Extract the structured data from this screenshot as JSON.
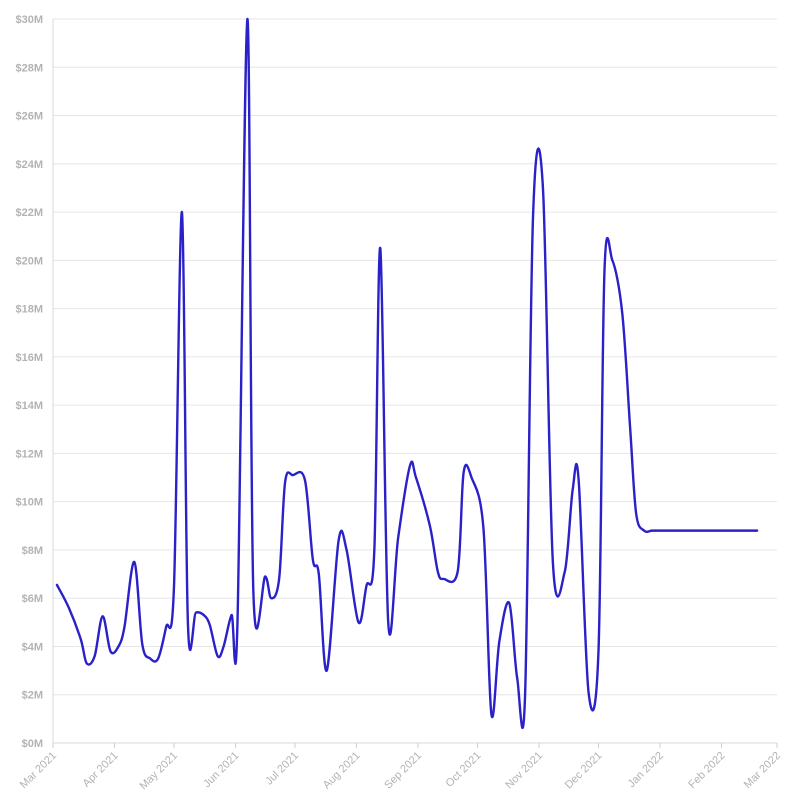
{
  "chart_data": {
    "type": "line",
    "title": "",
    "xlabel": "",
    "ylabel": "",
    "grid": "horizontal",
    "legend": "none",
    "line_color": "#2b21c9",
    "ylim": [
      0,
      30000000
    ],
    "y_ticks": [
      0,
      2000000,
      4000000,
      6000000,
      8000000,
      10000000,
      12000000,
      14000000,
      16000000,
      18000000,
      20000000,
      22000000,
      24000000,
      26000000,
      28000000,
      30000000
    ],
    "y_tick_labels": [
      "$0M",
      "$2M",
      "$4M",
      "$6M",
      "$8M",
      "$10M",
      "$12M",
      "$14M",
      "$16M",
      "$18M",
      "$20M",
      "$22M",
      "$24M",
      "$26M",
      "$28M",
      "$30M"
    ],
    "xlim": [
      "2021-03-01",
      "2022-03-01"
    ],
    "x_ticks": [
      "2021-03-01",
      "2021-04-01",
      "2021-05-01",
      "2021-06-01",
      "2021-07-01",
      "2021-08-01",
      "2021-09-01",
      "2021-10-01",
      "2021-11-01",
      "2021-12-01",
      "2022-01-01",
      "2022-02-01",
      "2022-03-01"
    ],
    "x_tick_labels": [
      "Mar 2021",
      "Apr 2021",
      "May 2021",
      "Jun 2021",
      "Jul 2021",
      "Aug 2021",
      "Sep 2021",
      "Oct 2021",
      "Nov 2021",
      "Dec 2021",
      "Jan 2022",
      "Feb 2022",
      "Mar 2022"
    ],
    "series": [
      {
        "x": [
          "2021-03-03",
          "2021-03-09",
          "2021-03-15",
          "2021-03-18",
          "2021-03-22",
          "2021-03-26",
          "2021-03-30",
          "2021-04-03",
          "2021-04-06",
          "2021-04-11",
          "2021-04-15",
          "2021-04-19",
          "2021-04-23",
          "2021-04-27",
          "2021-05-01",
          "2021-05-05",
          "2021-05-08",
          "2021-05-12",
          "2021-05-16",
          "2021-05-19",
          "2021-05-23",
          "2021-05-26",
          "2021-05-30",
          "2021-06-02",
          "2021-06-07",
          "2021-06-10",
          "2021-06-16",
          "2021-06-19",
          "2021-06-23",
          "2021-06-26",
          "2021-06-30",
          "2021-07-06",
          "2021-07-10",
          "2021-07-13",
          "2021-07-17",
          "2021-07-23",
          "2021-07-27",
          "2021-08-02",
          "2021-08-06",
          "2021-08-10",
          "2021-08-13",
          "2021-08-17",
          "2021-08-22",
          "2021-08-28",
          "2021-08-31",
          "2021-09-07",
          "2021-09-11",
          "2021-09-14",
          "2021-09-21",
          "2021-09-24",
          "2021-09-28",
          "2021-10-04",
          "2021-10-08",
          "2021-10-12",
          "2021-10-17",
          "2021-10-21",
          "2021-10-25",
          "2021-10-29",
          "2021-11-03",
          "2021-11-08",
          "2021-11-14",
          "2021-11-18",
          "2021-11-21",
          "2021-11-26",
          "2021-12-01",
          "2021-12-04",
          "2021-12-08",
          "2021-12-13",
          "2021-12-17",
          "2021-12-20",
          "2021-12-24",
          "2021-12-28",
          "2022-01-01",
          "2022-01-04",
          "2022-01-07",
          "2022-01-10",
          "2022-01-14",
          "2022-01-17",
          "2022-01-21",
          "2022-01-24",
          "2022-01-28",
          "2022-01-31",
          "2022-02-04",
          "2022-02-07",
          "2022-02-11",
          "2022-02-14",
          "2022-02-19"
        ],
        "values": [
          6550000,
          5600000,
          4300000,
          3300000,
          3600000,
          5250000,
          3800000,
          4000000,
          4800000,
          7500000,
          4100000,
          3500000,
          3500000,
          4800000,
          6500000,
          22000000,
          5000000,
          5400000,
          5300000,
          4900000,
          3600000,
          4000000,
          5300000,
          5000000,
          30000000,
          6300000,
          6900000,
          6000000,
          6800000,
          10800000,
          11100000,
          10900000,
          7600000,
          7000000,
          3000000,
          8400000,
          8000000,
          5000000,
          6500000,
          8000000,
          20500000,
          5000000,
          8500000,
          11500000,
          11000000,
          9000000,
          7100000,
          6800000,
          7100000,
          11200000,
          11000000,
          8900000,
          1200000,
          4200000,
          5800000,
          2700000,
          2000000,
          21800000,
          23000000,
          7500000,
          7100000,
          10500000,
          10900000,
          2100000,
          3800000,
          19500000,
          20000000,
          17800000,
          13000000,
          9500000,
          8800000,
          8800000,
          8800000,
          8800000,
          8800000,
          8800000,
          8800000,
          8800000,
          8800000,
          8800000,
          8800000,
          8800000,
          8800000,
          8800000,
          8800000,
          8800000,
          8800000
        ]
      }
    ]
  }
}
